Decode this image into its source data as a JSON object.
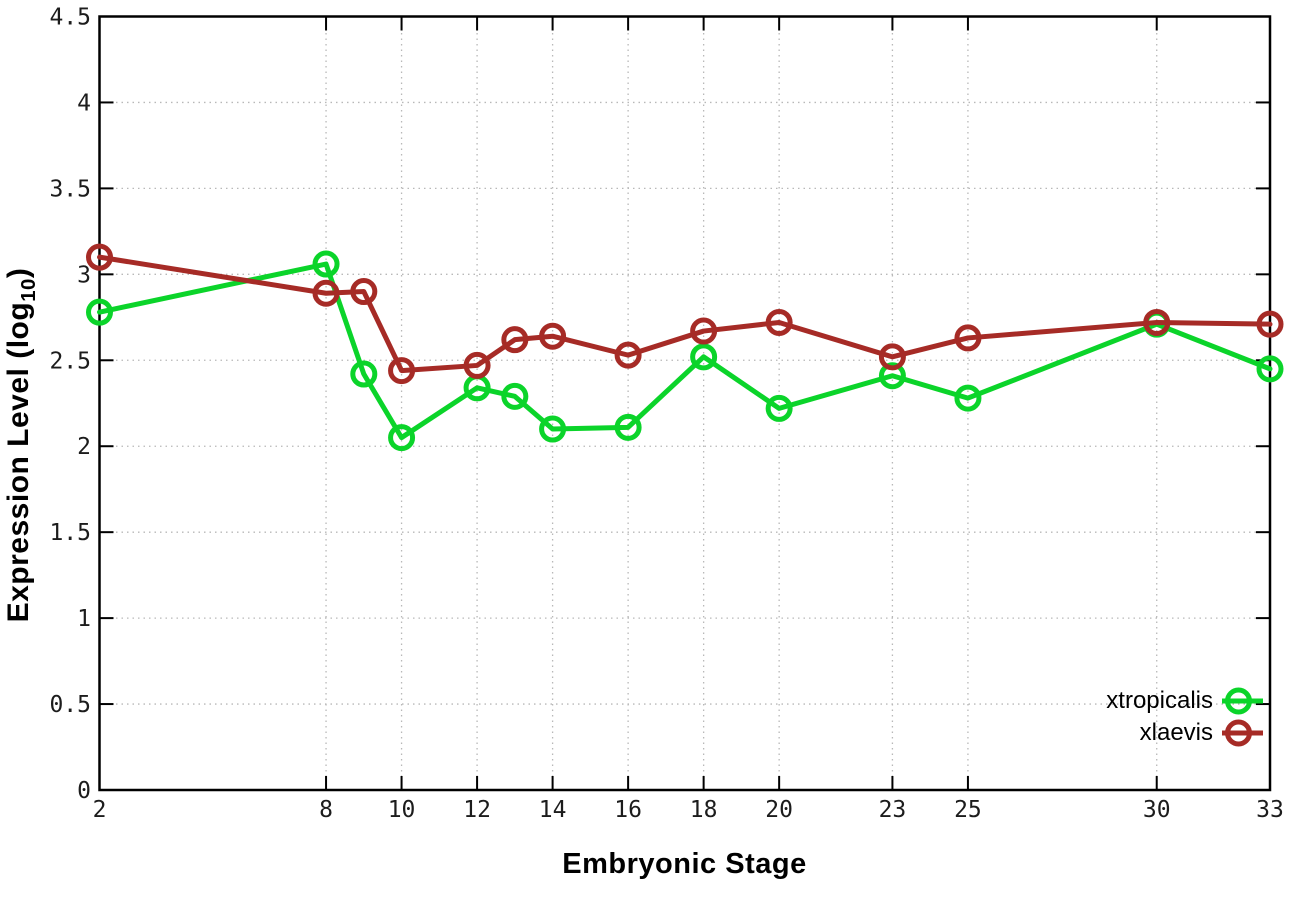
{
  "chart_data": {
    "type": "line",
    "title": "",
    "xlabel": "Embryonic Stage",
    "ylabel": "Expression Level (log10)",
    "ylabel_parts": {
      "pre": "Expression Level (log",
      "sub": "10",
      "post": ")"
    },
    "xlim": [
      2,
      33
    ],
    "ylim": [
      0,
      4.5
    ],
    "grid": true,
    "legend_position": "bottom-right",
    "x": [
      2,
      8,
      9,
      10,
      12,
      13,
      14,
      16,
      18,
      20,
      23,
      25,
      30,
      33
    ],
    "xtick_values": [
      2,
      8,
      10,
      12,
      14,
      16,
      18,
      20,
      23,
      25,
      30,
      33
    ],
    "xtick_labels": [
      "2",
      "8",
      "10",
      "12",
      "14",
      "16",
      "18",
      "20",
      "23",
      "25",
      "30",
      "33"
    ],
    "ytick_values": [
      0,
      0.5,
      1,
      1.5,
      2,
      2.5,
      3,
      3.5,
      4,
      4.5
    ],
    "ytick_labels": [
      "0",
      "0.5",
      "1",
      "1.5",
      "2",
      "2.5",
      "3",
      "3.5",
      "4",
      "4.5"
    ],
    "series": [
      {
        "name": "xtropicalis",
        "color": "#0bd42a",
        "marker": "open-circle",
        "values": [
          2.78,
          3.06,
          2.42,
          2.05,
          2.34,
          2.29,
          2.1,
          2.11,
          2.52,
          2.22,
          2.41,
          2.28,
          2.71,
          2.45
        ]
      },
      {
        "name": "xlaevis",
        "color": "#a62b26",
        "marker": "open-circle",
        "values": [
          3.1,
          2.89,
          2.9,
          2.44,
          2.47,
          2.62,
          2.64,
          2.53,
          2.67,
          2.72,
          2.52,
          2.63,
          2.72,
          2.71
        ]
      }
    ],
    "colors": {
      "border": "#000000",
      "grid": "#b8b8b8",
      "tick_text": "#1c1c1c"
    }
  }
}
